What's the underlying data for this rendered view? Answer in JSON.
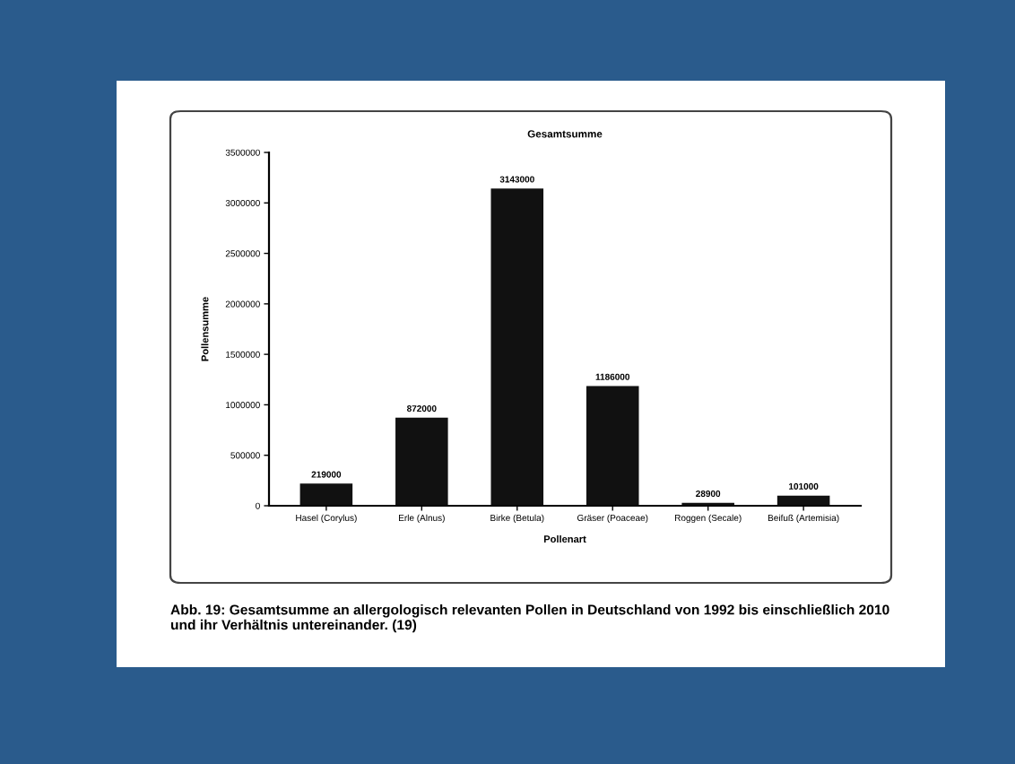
{
  "chart_data": {
    "type": "bar",
    "title": "Gesamtsumme",
    "xlabel": "Pollenart",
    "ylabel": "Pollensumme",
    "categories": [
      "Hasel (Corylus)",
      "Erle (Alnus)",
      "Birke (Betula)",
      "Gräser (Poaceae)",
      "Roggen (Secale)",
      "Beifuß (Artemisia)"
    ],
    "values": [
      219000,
      872000,
      3143000,
      1186000,
      28900,
      101000
    ],
    "value_labels": [
      "219000",
      "872000",
      "3143000",
      "1186000",
      "28900",
      "101000"
    ],
    "color": "#111111",
    "ylim": [
      0,
      3500000
    ],
    "yticks": [
      0,
      500000,
      1000000,
      1500000,
      2000000,
      2500000,
      3000000,
      3500000
    ],
    "grid": false,
    "legend": false,
    "annotations": [
      "Abb. 19: Gesamtsumme an allergologisch relevanten Pollen in Deutschland von 1992 bis einschließlich 2010 und ihr Verhältnis untereinander. (19)"
    ]
  }
}
